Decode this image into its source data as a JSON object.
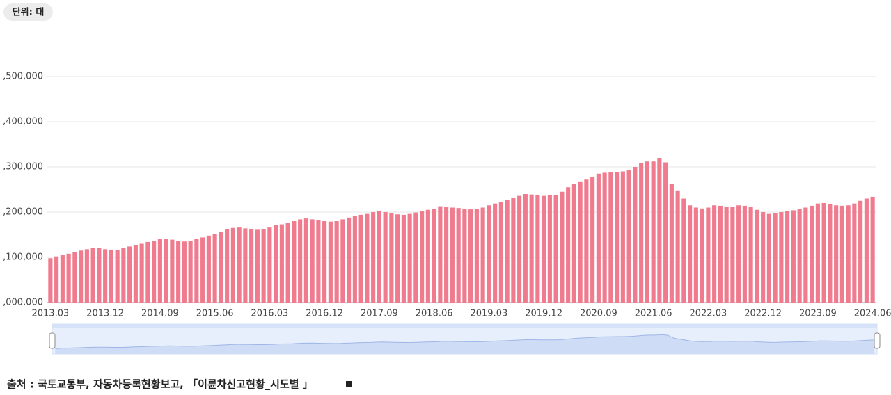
{
  "chart_data": {
    "type": "bar",
    "unit_label": "단위: 대",
    "source": "출처 :  국토교통부, 자동차등록현황보고, 「이륜차신고현황_시도별 」",
    "color": "#f07b8e",
    "grid": true,
    "ylim": [
      2000000,
      2500000
    ],
    "yticks": [
      {
        "value": 2000000,
        "label": ",000,000"
      },
      {
        "value": 2100000,
        "label": ",100,000"
      },
      {
        "value": 2200000,
        "label": ",200,000"
      },
      {
        "value": 2300000,
        "label": ",300,000"
      },
      {
        "value": 2400000,
        "label": ",400,000"
      },
      {
        "value": 2500000,
        "label": ",500,000"
      }
    ],
    "categories": [
      "2013.03",
      null,
      null,
      null,
      null,
      null,
      null,
      null,
      null,
      "2013.12",
      null,
      null,
      null,
      null,
      null,
      null,
      null,
      null,
      "2014.09",
      null,
      null,
      null,
      null,
      null,
      null,
      null,
      null,
      "2015.06",
      null,
      null,
      null,
      null,
      null,
      null,
      null,
      null,
      "2016.03",
      null,
      null,
      null,
      null,
      null,
      null,
      null,
      null,
      "2016.12",
      null,
      null,
      null,
      null,
      null,
      null,
      null,
      null,
      "2017.09",
      null,
      null,
      null,
      null,
      null,
      null,
      null,
      null,
      "2018.06",
      null,
      null,
      null,
      null,
      null,
      null,
      null,
      null,
      "2019.03",
      null,
      null,
      null,
      null,
      null,
      null,
      null,
      null,
      "2019.12",
      null,
      null,
      null,
      null,
      null,
      null,
      null,
      null,
      "2020.09",
      null,
      null,
      null,
      null,
      null,
      null,
      null,
      null,
      "2021.06",
      null,
      null,
      null,
      null,
      null,
      null,
      null,
      null,
      "2022.03",
      null,
      null,
      null,
      null,
      null,
      null,
      null,
      null,
      "2022.12",
      null,
      null,
      null,
      null,
      null,
      null,
      null,
      null,
      "2023.09",
      null,
      null,
      null,
      null,
      null,
      null,
      null,
      null,
      "2024.06"
    ],
    "values": [
      2098000,
      2102000,
      2106000,
      2108000,
      2111000,
      2115000,
      2118000,
      2120000,
      2120000,
      2118000,
      2117000,
      2117000,
      2120000,
      2124000,
      2127000,
      2130000,
      2134000,
      2136000,
      2140000,
      2141000,
      2139000,
      2136000,
      2135000,
      2136000,
      2140000,
      2144000,
      2148000,
      2152000,
      2157000,
      2162000,
      2165000,
      2166000,
      2164000,
      2162000,
      2161000,
      2162000,
      2166000,
      2172000,
      2173000,
      2176000,
      2180000,
      2184000,
      2186000,
      2184000,
      2182000,
      2180000,
      2179000,
      2180000,
      2184000,
      2188000,
      2191000,
      2194000,
      2196000,
      2200000,
      2202000,
      2200000,
      2198000,
      2195000,
      2194000,
      2196000,
      2199000,
      2202000,
      2205000,
      2207000,
      2213000,
      2212000,
      2210000,
      2209000,
      2207000,
      2206000,
      2207000,
      2210000,
      2215000,
      2219000,
      2222000,
      2227000,
      2232000,
      2236000,
      2240000,
      2239000,
      2237000,
      2236000,
      2237000,
      2238000,
      2245000,
      2255000,
      2262000,
      2268000,
      2272000,
      2277000,
      2285000,
      2287000,
      2288000,
      2289000,
      2290000,
      2293000,
      2300000,
      2308000,
      2312000,
      2312000,
      2320000,
      2310000,
      2263000,
      2248000,
      2230000,
      2215000,
      2210000,
      2208000,
      2210000,
      2215000,
      2214000,
      2212000,
      2212000,
      2215000,
      2214000,
      2212000,
      2205000,
      2200000,
      2196000,
      2197000,
      2200000,
      2202000,
      2204000,
      2207000,
      2210000,
      2214000,
      2219000,
      2220000,
      2218000,
      2215000,
      2214000,
      2215000,
      2219000,
      2225000,
      2230000,
      2234000
    ]
  }
}
